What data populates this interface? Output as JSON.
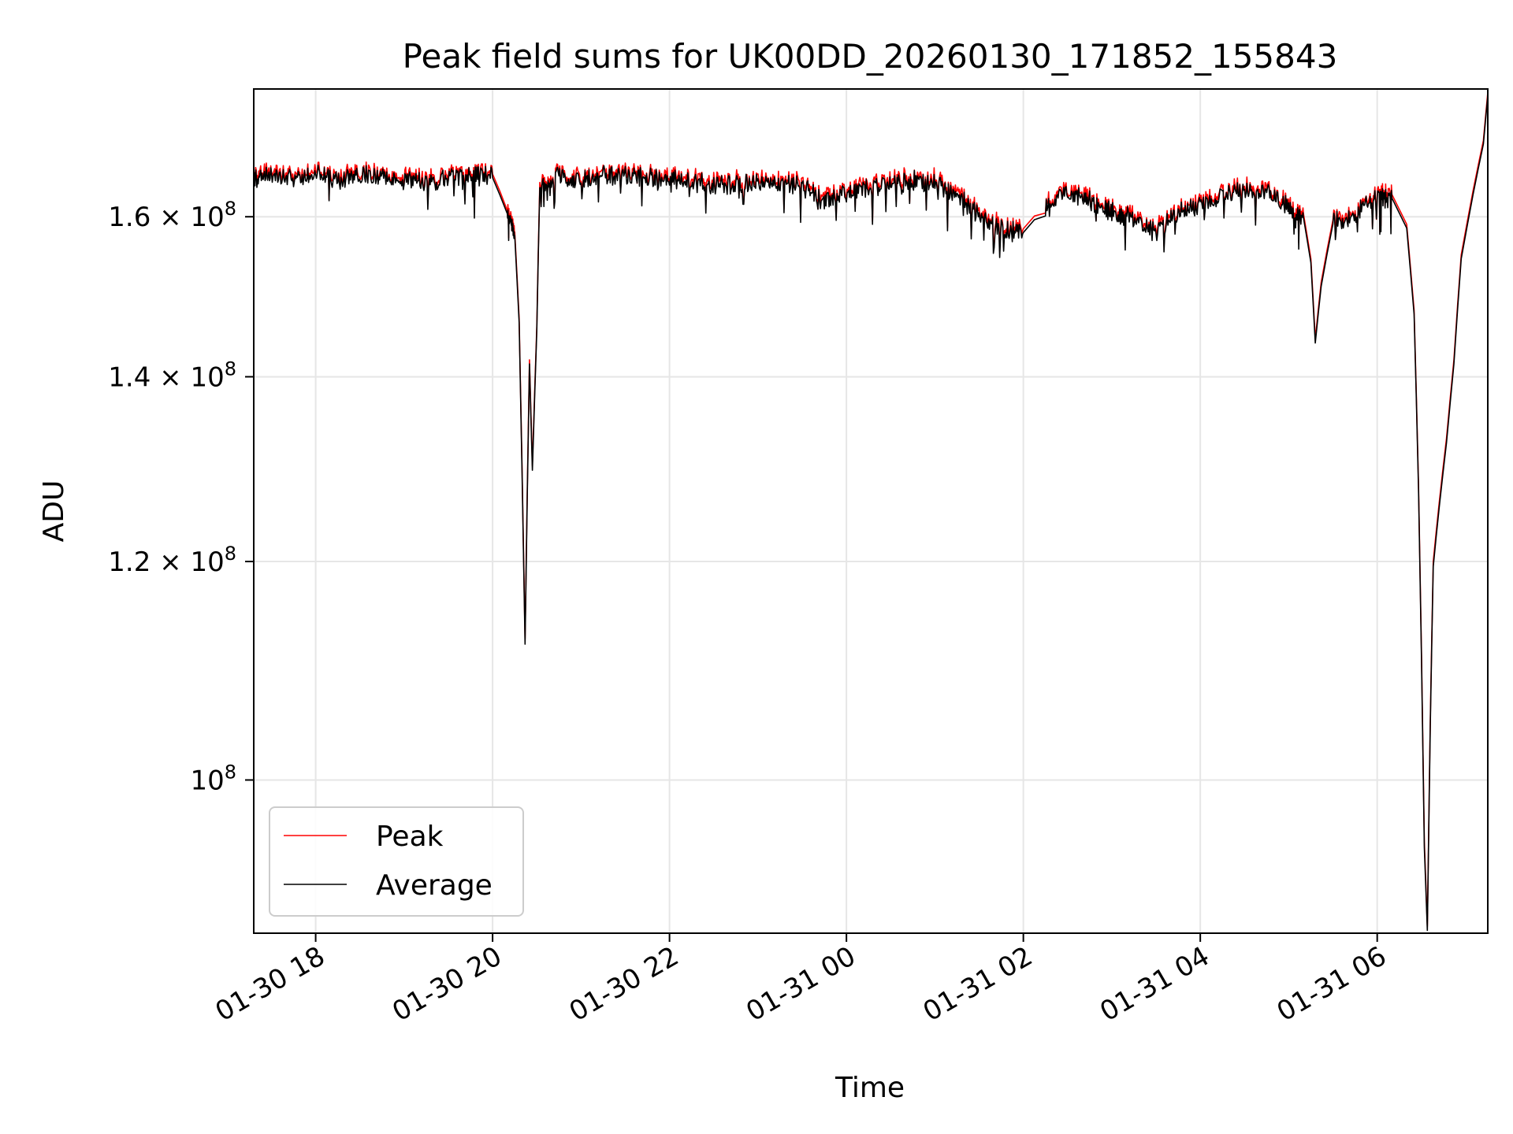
{
  "chart_data": {
    "type": "line",
    "title": "Peak field sums for UK00DD_20260130_171852_155843",
    "xlabel": "Time",
    "ylabel": "ADU",
    "yscale": "log",
    "xlim": [
      "2026-01-30T17:18",
      "2026-01-31T07:15"
    ],
    "ylim": [
      88000000,
      178000000
    ],
    "grid": true,
    "legend_position": "lower-left",
    "x_ticks": [
      {
        "t": "2026-01-30T18:00",
        "label": "01-30 18"
      },
      {
        "t": "2026-01-30T20:00",
        "label": "01-30 20"
      },
      {
        "t": "2026-01-30T22:00",
        "label": "01-30 22"
      },
      {
        "t": "2026-01-31T00:00",
        "label": "01-31 00"
      },
      {
        "t": "2026-01-31T02:00",
        "label": "01-31 02"
      },
      {
        "t": "2026-01-31T04:00",
        "label": "01-31 04"
      },
      {
        "t": "2026-01-31T06:00",
        "label": "01-31 06"
      }
    ],
    "y_ticks": [
      {
        "value": 100000000,
        "mantissa": "",
        "exponent": "8"
      },
      {
        "value": 120000000,
        "mantissa": "1.2",
        "exponent": "8"
      },
      {
        "value": 140000000,
        "mantissa": "1.4",
        "exponent": "8"
      },
      {
        "value": 160000000,
        "mantissa": "1.6",
        "exponent": "8"
      }
    ],
    "series": [
      {
        "name": "Peak",
        "color": "#ff0000",
        "points": [
          [
            "2026-01-30T17:18",
            165.5
          ],
          [
            "2026-01-30T17:30",
            166.0
          ],
          [
            "2026-01-30T17:45",
            165.8
          ],
          [
            "2026-01-30T18:00",
            166.2
          ],
          [
            "2026-01-30T18:15",
            165.6
          ],
          [
            "2026-01-30T18:30",
            166.3
          ],
          [
            "2026-01-30T18:45",
            165.9
          ],
          [
            "2026-01-30T19:00",
            165.4
          ],
          [
            "2026-01-30T19:15",
            165.1
          ],
          [
            "2026-01-30T19:30",
            165.6
          ],
          [
            "2026-01-30T19:45",
            166.3
          ],
          [
            "2026-01-30T20:00",
            165.8
          ],
          [
            "2026-01-30T20:10",
            161.0
          ],
          [
            "2026-01-30T20:15",
            158.0
          ],
          [
            "2026-01-30T20:18",
            147.0
          ],
          [
            "2026-01-30T20:22",
            112.5
          ],
          [
            "2026-01-30T20:25",
            142.0
          ],
          [
            "2026-01-30T20:27",
            130.0
          ],
          [
            "2026-01-30T20:30",
            146.0
          ],
          [
            "2026-01-30T20:32",
            165.0
          ],
          [
            "2026-01-30T20:45",
            166.0
          ],
          [
            "2026-01-30T21:00",
            165.5
          ],
          [
            "2026-01-30T21:15",
            166.0
          ],
          [
            "2026-01-30T21:30",
            166.2
          ],
          [
            "2026-01-30T21:45",
            165.7
          ],
          [
            "2026-01-30T22:00",
            165.4
          ],
          [
            "2026-01-30T22:15",
            165.3
          ],
          [
            "2026-01-30T22:30",
            164.8
          ],
          [
            "2026-01-30T22:45",
            165.0
          ],
          [
            "2026-01-30T23:00",
            165.1
          ],
          [
            "2026-01-30T23:15",
            164.9
          ],
          [
            "2026-01-30T23:30",
            164.6
          ],
          [
            "2026-01-30T23:45",
            162.5
          ],
          [
            "2026-01-31T00:00",
            163.8
          ],
          [
            "2026-01-31T00:15",
            164.3
          ],
          [
            "2026-01-31T00:30",
            164.9
          ],
          [
            "2026-01-31T00:45",
            165.4
          ],
          [
            "2026-01-31T01:00",
            165.3
          ],
          [
            "2026-01-31T01:15",
            163.2
          ],
          [
            "2026-01-31T01:30",
            160.8
          ],
          [
            "2026-01-31T01:45",
            158.8
          ],
          [
            "2026-01-31T02:00",
            158.4
          ],
          [
            "2026-01-31T02:15",
            161.8
          ],
          [
            "2026-01-31T02:30",
            163.8
          ],
          [
            "2026-01-31T02:45",
            162.8
          ],
          [
            "2026-01-31T03:00",
            161.0
          ],
          [
            "2026-01-31T03:15",
            160.4
          ],
          [
            "2026-01-31T03:30",
            158.4
          ],
          [
            "2026-01-31T03:45",
            161.2
          ],
          [
            "2026-01-31T04:00",
            162.2
          ],
          [
            "2026-01-31T04:15",
            163.2
          ],
          [
            "2026-01-31T04:30",
            164.2
          ],
          [
            "2026-01-31T04:45",
            163.8
          ],
          [
            "2026-01-31T05:00",
            161.8
          ],
          [
            "2026-01-31T05:10",
            160.4
          ],
          [
            "2026-01-31T05:15",
            154.5
          ],
          [
            "2026-01-31T05:18",
            144.5
          ],
          [
            "2026-01-31T05:22",
            151.5
          ],
          [
            "2026-01-31T05:30",
            159.8
          ],
          [
            "2026-01-31T05:45",
            160.8
          ],
          [
            "2026-01-31T06:00",
            163.2
          ],
          [
            "2026-01-31T06:10",
            163.0
          ],
          [
            "2026-01-31T06:20",
            159.0
          ],
          [
            "2026-01-31T06:25",
            148.0
          ],
          [
            "2026-01-31T06:28",
            128.0
          ],
          [
            "2026-01-31T06:32",
            95.0
          ],
          [
            "2026-01-31T06:34",
            88.5
          ],
          [
            "2026-01-31T06:36",
            105.0
          ],
          [
            "2026-01-31T06:38",
            120.0
          ],
          [
            "2026-01-31T06:42",
            126.0
          ],
          [
            "2026-01-31T06:47",
            133.0
          ],
          [
            "2026-01-31T06:52",
            142.0
          ],
          [
            "2026-01-31T06:57",
            155.0
          ],
          [
            "2026-01-31T07:05",
            163.5
          ],
          [
            "2026-01-31T07:12",
            170.5
          ],
          [
            "2026-01-31T07:15",
            177.5
          ]
        ]
      },
      {
        "name": "Average",
        "color": "#000000",
        "points": [
          [
            "2026-01-30T17:18",
            165.0
          ],
          [
            "2026-01-30T17:30",
            165.5
          ],
          [
            "2026-01-30T17:45",
            165.3
          ],
          [
            "2026-01-30T18:00",
            165.7
          ],
          [
            "2026-01-30T18:15",
            165.1
          ],
          [
            "2026-01-30T18:30",
            165.8
          ],
          [
            "2026-01-30T18:45",
            165.4
          ],
          [
            "2026-01-30T19:00",
            164.9
          ],
          [
            "2026-01-30T19:15",
            164.6
          ],
          [
            "2026-01-30T19:30",
            165.1
          ],
          [
            "2026-01-30T19:45",
            165.8
          ],
          [
            "2026-01-30T20:00",
            165.3
          ],
          [
            "2026-01-30T20:10",
            160.5
          ],
          [
            "2026-01-30T20:15",
            157.5
          ],
          [
            "2026-01-30T20:18",
            146.5
          ],
          [
            "2026-01-30T20:22",
            112.0
          ],
          [
            "2026-01-30T20:25",
            141.5
          ],
          [
            "2026-01-30T20:27",
            129.5
          ],
          [
            "2026-01-30T20:30",
            145.5
          ],
          [
            "2026-01-30T20:32",
            164.5
          ],
          [
            "2026-01-30T20:45",
            165.5
          ],
          [
            "2026-01-30T21:00",
            165.0
          ],
          [
            "2026-01-30T21:15",
            165.5
          ],
          [
            "2026-01-30T21:30",
            165.7
          ],
          [
            "2026-01-30T21:45",
            165.2
          ],
          [
            "2026-01-30T22:00",
            164.9
          ],
          [
            "2026-01-30T22:15",
            164.8
          ],
          [
            "2026-01-30T22:30",
            164.3
          ],
          [
            "2026-01-30T22:45",
            164.5
          ],
          [
            "2026-01-30T23:00",
            164.6
          ],
          [
            "2026-01-30T23:15",
            164.4
          ],
          [
            "2026-01-30T23:30",
            164.1
          ],
          [
            "2026-01-30T23:45",
            162.0
          ],
          [
            "2026-01-31T00:00",
            163.3
          ],
          [
            "2026-01-31T00:15",
            163.8
          ],
          [
            "2026-01-31T00:30",
            164.4
          ],
          [
            "2026-01-31T00:45",
            164.9
          ],
          [
            "2026-01-31T01:00",
            164.8
          ],
          [
            "2026-01-31T01:15",
            162.7
          ],
          [
            "2026-01-31T01:30",
            160.3
          ],
          [
            "2026-01-31T01:45",
            158.3
          ],
          [
            "2026-01-31T02:00",
            157.9
          ],
          [
            "2026-01-31T02:15",
            161.3
          ],
          [
            "2026-01-31T02:30",
            163.3
          ],
          [
            "2026-01-31T02:45",
            162.3
          ],
          [
            "2026-01-31T03:00",
            160.5
          ],
          [
            "2026-01-31T03:15",
            159.9
          ],
          [
            "2026-01-31T03:30",
            157.9
          ],
          [
            "2026-01-31T03:45",
            160.7
          ],
          [
            "2026-01-31T04:00",
            161.7
          ],
          [
            "2026-01-31T04:15",
            162.7
          ],
          [
            "2026-01-31T04:30",
            163.7
          ],
          [
            "2026-01-31T04:45",
            163.3
          ],
          [
            "2026-01-31T05:00",
            161.3
          ],
          [
            "2026-01-31T05:10",
            159.9
          ],
          [
            "2026-01-31T05:15",
            154.0
          ],
          [
            "2026-01-31T05:18",
            144.0
          ],
          [
            "2026-01-31T05:22",
            151.0
          ],
          [
            "2026-01-31T05:30",
            159.3
          ],
          [
            "2026-01-31T05:45",
            160.3
          ],
          [
            "2026-01-31T06:00",
            162.7
          ],
          [
            "2026-01-31T06:10",
            162.5
          ],
          [
            "2026-01-31T06:20",
            158.5
          ],
          [
            "2026-01-31T06:25",
            147.5
          ],
          [
            "2026-01-31T06:28",
            127.5
          ],
          [
            "2026-01-31T06:32",
            94.5
          ],
          [
            "2026-01-31T06:34",
            88.2
          ],
          [
            "2026-01-31T06:36",
            104.5
          ],
          [
            "2026-01-31T06:38",
            119.5
          ],
          [
            "2026-01-31T06:42",
            125.5
          ],
          [
            "2026-01-31T06:47",
            132.5
          ],
          [
            "2026-01-31T06:52",
            141.5
          ],
          [
            "2026-01-31T06:57",
            154.5
          ],
          [
            "2026-01-31T07:05",
            163.0
          ],
          [
            "2026-01-31T07:12",
            170.0
          ],
          [
            "2026-01-31T07:15",
            177.0
          ]
        ]
      }
    ],
    "y_unit_multiplier": 1000000
  }
}
